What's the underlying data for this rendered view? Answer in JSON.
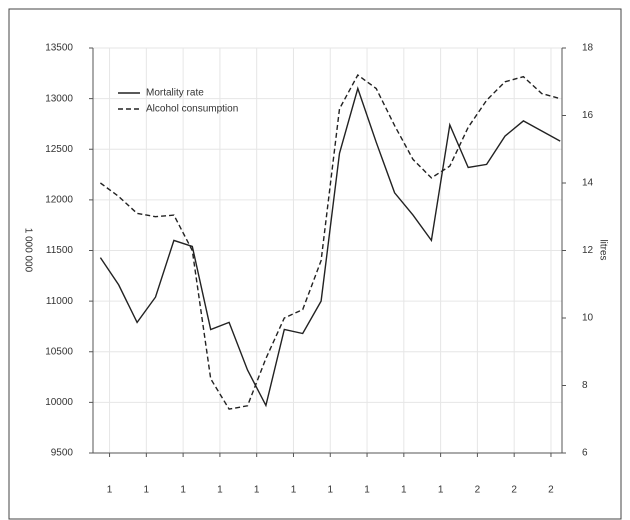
{
  "chart_data": {
    "type": "line",
    "ylabel": "1 000 000",
    "y2label": "litres",
    "x": [
      0,
      1,
      2,
      3,
      4,
      5,
      6,
      7,
      8,
      9,
      10,
      11,
      12,
      13,
      14,
      15,
      16,
      17,
      18,
      19,
      20,
      21,
      22,
      23,
      24,
      25
    ],
    "xlim": [
      -0.4,
      25.1
    ],
    "xticks": [
      {
        "value": 0.5,
        "label": "1"
      },
      {
        "value": 2.5,
        "label": "1"
      },
      {
        "value": 4.5,
        "label": "1"
      },
      {
        "value": 6.5,
        "label": "1"
      },
      {
        "value": 8.5,
        "label": "1"
      },
      {
        "value": 10.5,
        "label": "1"
      },
      {
        "value": 12.5,
        "label": "1"
      },
      {
        "value": 14.5,
        "label": "1"
      },
      {
        "value": 16.5,
        "label": "1"
      },
      {
        "value": 18.5,
        "label": "1"
      },
      {
        "value": 20.5,
        "label": "2"
      },
      {
        "value": 22.5,
        "label": "2"
      },
      {
        "value": 24.5,
        "label": "2"
      }
    ],
    "ylim": [
      9500,
      13500
    ],
    "yticks": [
      9500,
      10000,
      10500,
      11000,
      11500,
      12000,
      12500,
      13000,
      13500
    ],
    "y2lim": [
      6,
      18
    ],
    "y2ticks": [
      6,
      8,
      10,
      12,
      14,
      16,
      18
    ],
    "grid": true,
    "legend": "upper left",
    "series": [
      {
        "name": "Mortality rate",
        "color": "#222222",
        "linestyle": "solid",
        "values": [
          11430,
          11160,
          10790,
          11040,
          11600,
          11540,
          10720,
          10790,
          10320,
          9970,
          10720,
          10680,
          11000,
          12460,
          13100,
          12570,
          12070,
          11850,
          11600,
          12740,
          12320,
          12350,
          12630,
          12780,
          12680,
          12580
        ]
      },
      {
        "name": "Alcohol consumption",
        "color": "#222222",
        "linestyle": "dashed",
        "axis": "y2",
        "values": [
          14.0,
          13.6,
          13.1,
          13.0,
          13.05,
          12.0,
          8.2,
          7.3,
          7.4,
          8.8,
          10.0,
          10.25,
          11.7,
          16.2,
          17.2,
          16.8,
          15.7,
          14.7,
          14.15,
          14.5,
          15.65,
          16.45,
          17.0,
          17.15,
          16.65,
          16.5
        ]
      }
    ]
  }
}
